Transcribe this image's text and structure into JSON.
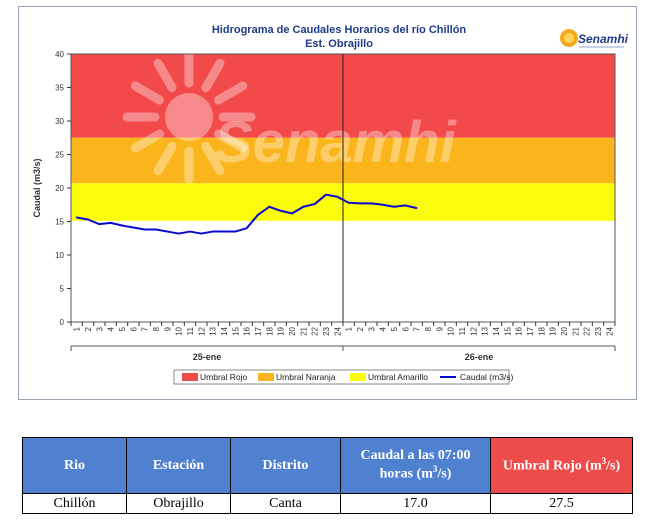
{
  "chart_data": {
    "type": "line",
    "title": "Hidrograma de Caudales Horarios del río Chillón",
    "subtitle": "Est. Obrajillo",
    "ylabel": "Caudal  (m3/s)",
    "ylim": [
      0,
      40
    ],
    "yticks": [
      0,
      5,
      10,
      15,
      20,
      25,
      30,
      35,
      40
    ],
    "x_hours_per_day": 24,
    "days": [
      "25-ene",
      "26-ene"
    ],
    "tick_labels": [
      "1",
      "2",
      "3",
      "4",
      "5",
      "6",
      "7",
      "8",
      "9",
      "10",
      "11",
      "12",
      "13",
      "14",
      "15",
      "16",
      "17",
      "18",
      "19",
      "20",
      "21",
      "22",
      "23",
      "24",
      "1",
      "2",
      "3",
      "4",
      "5",
      "6",
      "7",
      "8",
      "9",
      "10",
      "11",
      "12",
      "13",
      "14",
      "15",
      "16",
      "17",
      "18",
      "19",
      "20",
      "21",
      "22",
      "23",
      "24"
    ],
    "thresholds": [
      {
        "name": "Umbral Rojo",
        "from": 27.5,
        "to": 40,
        "color": "#f24a4a"
      },
      {
        "name": "Umbral Naranja",
        "from": 20.7,
        "to": 27.5,
        "color": "#fbb51c"
      },
      {
        "name": "Umbral Amarillo",
        "from": 15.1,
        "to": 20.7,
        "color": "#fbfb0e"
      }
    ],
    "series": [
      {
        "name": "Caudal (m3/s)",
        "color": "#0a0ad0",
        "x": [
          1,
          2,
          3,
          4,
          5,
          6,
          7,
          8,
          9,
          10,
          11,
          12,
          13,
          14,
          15,
          16,
          17,
          18,
          19,
          20,
          21,
          22,
          23,
          24,
          25,
          26,
          27,
          28,
          29,
          30,
          31
        ],
        "values": [
          15.6,
          15.3,
          14.6,
          14.8,
          14.4,
          14.1,
          13.8,
          13.8,
          13.5,
          13.2,
          13.5,
          13.2,
          13.5,
          13.5,
          13.5,
          14.0,
          16.0,
          17.2,
          16.6,
          16.2,
          17.2,
          17.6,
          19.0,
          18.7,
          17.8,
          17.7,
          17.7,
          17.5,
          17.2,
          17.4,
          17.0
        ]
      }
    ],
    "legend_position": "bottom",
    "grid": false
  },
  "brand": "Senamhi",
  "watermark": "Senamhi",
  "table": {
    "headers": [
      "Rio",
      "Estación",
      "Distrito",
      "Caudal a las 07:00 horas (m3/s)",
      "Umbral Rojo (m3/s)"
    ],
    "rows": [
      [
        "Chillón",
        "Obrajillo",
        "Canta",
        "17.0",
        "27.5"
      ]
    ]
  }
}
